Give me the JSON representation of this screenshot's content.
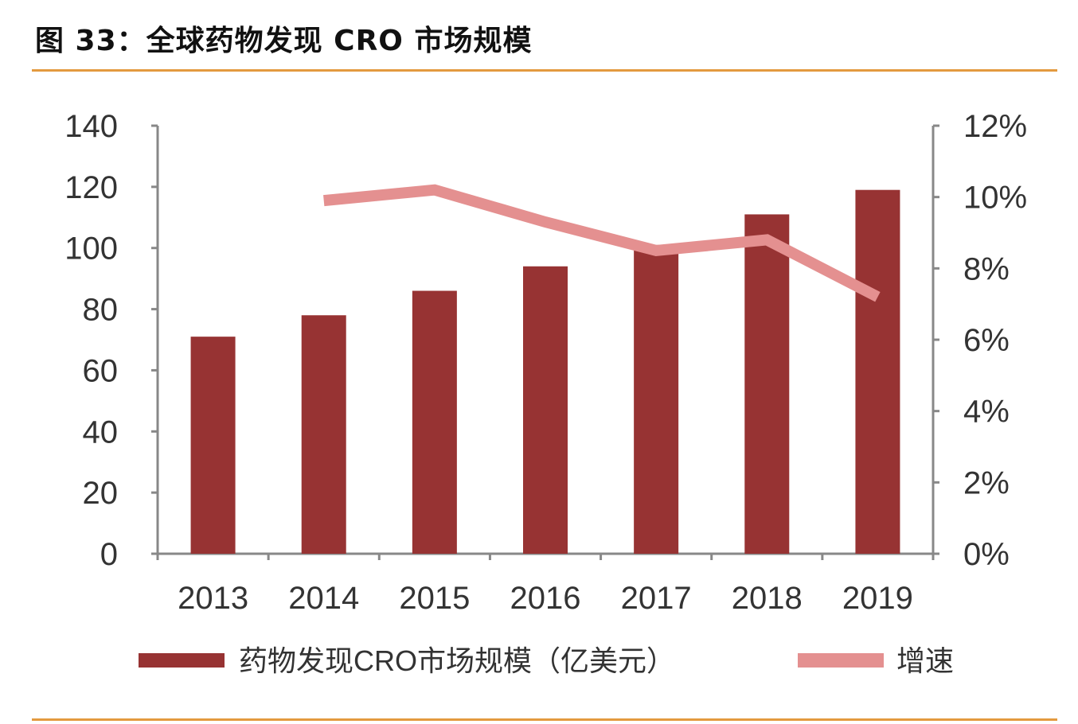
{
  "title": "图 33：全球药物发现 CRO 市场规模",
  "chart_data": {
    "type": "bar+line",
    "categories": [
      "2013",
      "2014",
      "2015",
      "2016",
      "2017",
      "2018",
      "2019"
    ],
    "series": [
      {
        "name": "药物发现CRO市场规模（亿美元）",
        "type": "bar",
        "axis": "left",
        "color": "#973333",
        "values": [
          71,
          78,
          86,
          94,
          101,
          111,
          119
        ]
      },
      {
        "name": "增速",
        "type": "line",
        "axis": "right",
        "color": "#e49090",
        "values": [
          null,
          9.9,
          10.2,
          9.3,
          8.5,
          8.8,
          7.2
        ]
      }
    ],
    "ylim_left": [
      0,
      140
    ],
    "yticks_left": [
      "0",
      "20",
      "40",
      "60",
      "80",
      "100",
      "120",
      "140"
    ],
    "ylim_right": [
      0,
      12
    ],
    "yticks_right": [
      "0%",
      "2%",
      "4%",
      "6%",
      "8%",
      "10%",
      "12%"
    ],
    "grid": false,
    "legend": "bottom"
  }
}
